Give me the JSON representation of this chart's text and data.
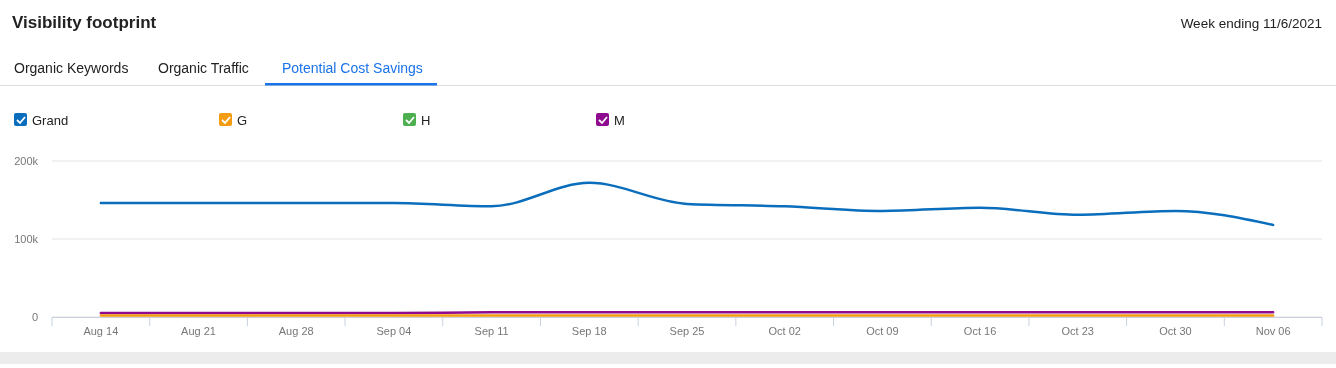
{
  "chart_data": {
    "type": "line",
    "title": "Visibility footprint",
    "subtitle": "Week ending 11/6/2021",
    "annotations": [
      "Organic Keywords",
      "Organic Traffic",
      "Potential Cost Savings"
    ],
    "categories": [
      "Aug 14",
      "Aug 21",
      "Aug 28",
      "Sep 04",
      "Sep 11",
      "Sep 18",
      "Sep 25",
      "Oct 02",
      "Oct 09",
      "Oct 16",
      "Oct 23",
      "Oct 30",
      "Nov 06"
    ],
    "series": [
      {
        "name": "Grand",
        "color": "#0a6ebd",
        "values": [
          146000,
          146000,
          146000,
          146000,
          142000,
          172000,
          145000,
          142000,
          136000,
          140000,
          131000,
          136000,
          118000
        ]
      },
      {
        "name": "G",
        "color": "#f39c12",
        "values": [
          2000,
          2000,
          2000,
          2000,
          2000,
          2000,
          2000,
          2000,
          2000,
          2000,
          2000,
          2000,
          2000
        ]
      },
      {
        "name": "H",
        "color": "#4caf50",
        "values": [
          null,
          null,
          null,
          null,
          null,
          null,
          null,
          null,
          null,
          null,
          null,
          null,
          null
        ]
      },
      {
        "name": "M",
        "color": "#8e0a8e",
        "values": [
          5000,
          5000,
          5000,
          5000,
          6000,
          6000,
          6000,
          6000,
          6000,
          6000,
          6000,
          6000,
          6000
        ]
      }
    ],
    "ylim": [
      0,
      200000
    ],
    "yticks": [
      0,
      {
        "value": 100000,
        "label": "100k"
      },
      {
        "value": 200000,
        "label": "200k"
      }
    ],
    "grid": "y",
    "legend": "top left",
    "marker": "none",
    "line_style": "solid"
  }
}
